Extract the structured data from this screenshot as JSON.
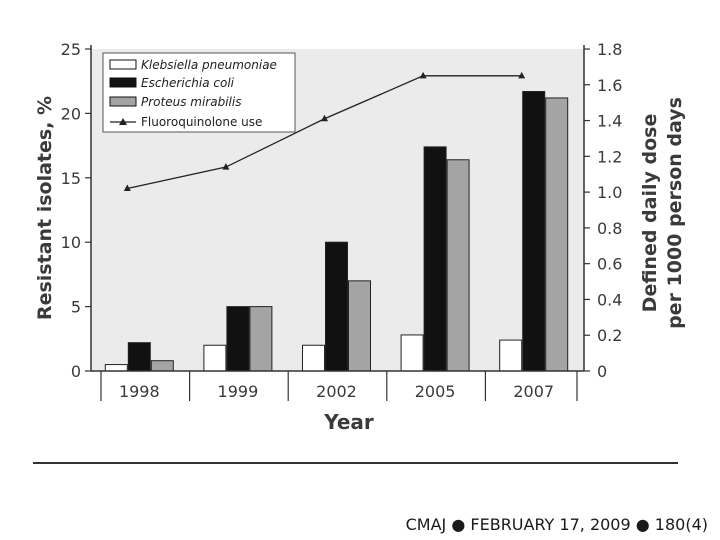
{
  "chart_data": {
    "type": "bar",
    "categories": [
      "1998",
      "1999",
      "2002",
      "2005",
      "2007"
    ],
    "series": [
      {
        "name": "Klebsiella pneumoniae",
        "values": [
          0.5,
          2.0,
          2.0,
          2.8,
          2.4
        ],
        "color": "#ffffff"
      },
      {
        "name": "Escherichia coli",
        "values": [
          2.2,
          5.0,
          10.0,
          17.4,
          21.7
        ],
        "color": "#111111"
      },
      {
        "name": "Proteus mirabilis",
        "values": [
          0.8,
          5.0,
          7.0,
          16.4,
          21.2
        ],
        "color": "#a4a4a4"
      }
    ],
    "line_series": {
      "name": "Fluoroquinolone use",
      "values": [
        1.02,
        1.14,
        1.41,
        1.65,
        1.65
      ],
      "color": "#222222"
    },
    "xlabel": "Year",
    "ylabel": "Resistant isolates, %",
    "y2label_line1": "Defined daily dose",
    "y2label_line2": "per 1000 person days",
    "ylim": [
      0,
      25
    ],
    "yticks": [
      "0",
      "5",
      "10",
      "15",
      "20",
      "25"
    ],
    "y2lim": [
      0,
      1.8
    ],
    "y2ticks": [
      "0",
      "0.2",
      "0.4",
      "0.6",
      "0.8",
      "1.0",
      "1.2",
      "1.4",
      "1.6",
      "1.8"
    ],
    "legend_position": "top-left",
    "background_color": "#ebebeb"
  },
  "footer": {
    "citation": "CMAJ ● FEBRUARY 17, 2009 ● 180(4)"
  }
}
